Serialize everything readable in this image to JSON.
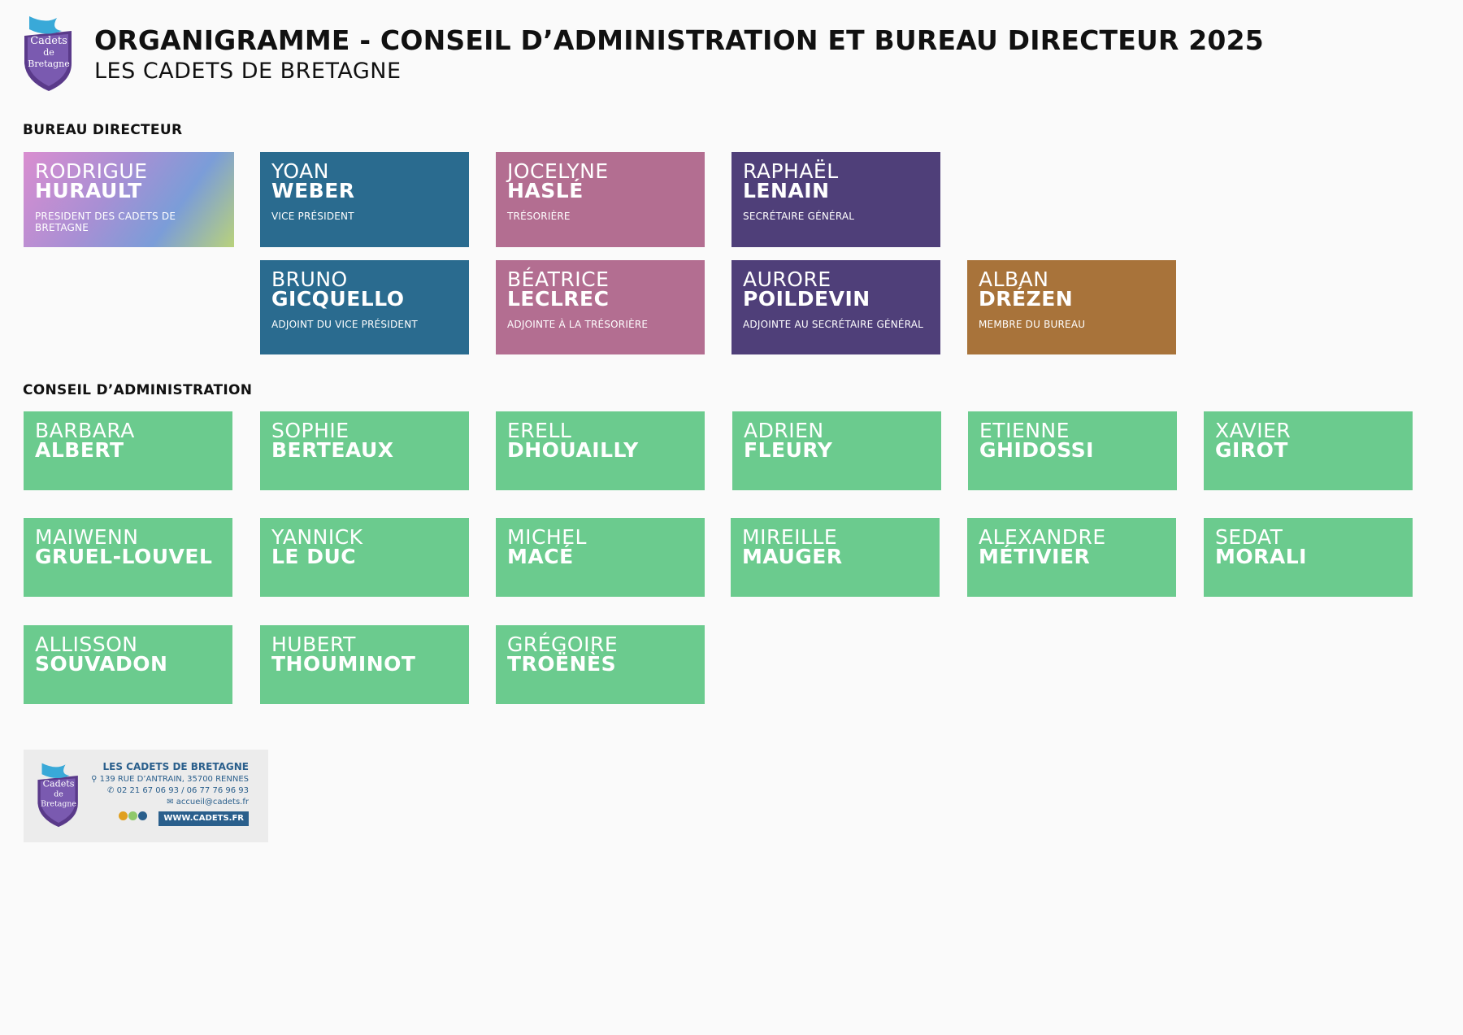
{
  "header": {
    "title": "ORGANIGRAMME - CONSEIL D’ADMINISTRATION ET BUREAU DIRECTEUR 2025",
    "subtitle": "LES CADETS DE BRETAGNE",
    "logo_text": [
      "Cadets",
      "de",
      "Bretagne"
    ]
  },
  "sections": {
    "bureau": "BUREAU DIRECTEUR",
    "conseil": "CONSEIL D’ADMINISTRATION"
  },
  "bureau": [
    {
      "first": "RODRIGUE",
      "last": "HURAULT",
      "role": "PRESIDENT DES CADETS DE BRETAGNE",
      "color": "gradient"
    },
    {
      "first": "YOAN",
      "last": "WEBER",
      "role": "VICE PRÉSIDENT",
      "color": "#2a6b8f"
    },
    {
      "first": "JOCELYNE",
      "last": "HASLÉ",
      "role": "TRÉSORIÈRE",
      "color": "#b36e91"
    },
    {
      "first": "RAPHAËL",
      "last": "LENAIN",
      "role": "SECRÉTAIRE GÉNÉRAL",
      "color": "#4f3f79"
    },
    {
      "first": "BRUNO",
      "last": "GICQUELLO",
      "role": "ADJOINT DU VICE PRÉSIDENT",
      "color": "#2a6b8f"
    },
    {
      "first": "BÉATRICE",
      "last": "LECLREC",
      "role": "ADJOINTE À LA TRÉSORIÈRE",
      "color": "#b36e91"
    },
    {
      "first": "AURORE",
      "last": "POILDEVIN",
      "role": "ADJOINTE AU SECRÉTAIRE GÉNÉRAL",
      "color": "#4f3f79"
    },
    {
      "first": "ALBAN",
      "last": "DRÉZEN",
      "role": "MEMBRE DU BUREAU",
      "color": "#a8733a"
    }
  ],
  "conseil": [
    {
      "first": "BARBARA",
      "last": "ALBERT"
    },
    {
      "first": "SOPHIE",
      "last": "BERTEAUX"
    },
    {
      "first": "ERELL",
      "last": "DHOUAILLY"
    },
    {
      "first": "ADRIEN",
      "last": "FLEURY"
    },
    {
      "first": "ETIENNE",
      "last": "GHIDOSSI"
    },
    {
      "first": "XAVIER",
      "last": "GIROT"
    },
    {
      "first": "MAIWENN",
      "last": "GRUEL-LOUVEL"
    },
    {
      "first": "YANNICK",
      "last": "LE DUC"
    },
    {
      "first": "MICHEL",
      "last": "MACÉ"
    },
    {
      "first": "MIREILLE",
      "last": "MAUGER"
    },
    {
      "first": "ALEXANDRE",
      "last": "MÉTIVIER"
    },
    {
      "first": "SEDAT",
      "last": "MORALI"
    },
    {
      "first": "ALLISSON",
      "last": "SOUVADON"
    },
    {
      "first": "HUBERT",
      "last": "THOUMINOT"
    },
    {
      "first": "GRÉGOIRE",
      "last": "TROËNÈS"
    }
  ],
  "footer": {
    "org": "LES CADETS DE BRETAGNE",
    "address": "139 RUE D’ANTRAIN, 35700 RENNES",
    "phone": "02 21 67 06 93 / 06 77 76 96 93",
    "email": "accueil@cadets.fr",
    "url": "WWW.CADETS.FR"
  },
  "colors": {
    "green": "#6bcb8e",
    "blue": "#2a6b8f",
    "pink": "#b36e91",
    "purple": "#4f3f79",
    "brown": "#a8733a",
    "footer_blue": "#2a5f8c"
  }
}
